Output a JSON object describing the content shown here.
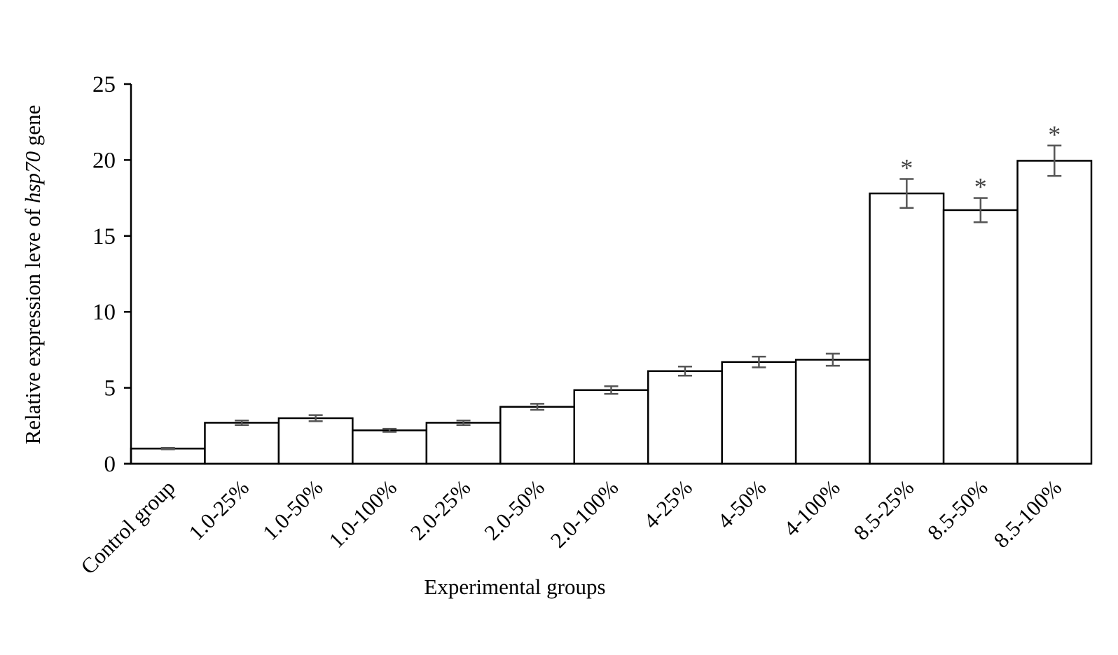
{
  "chart_data": {
    "type": "bar",
    "categories": [
      "Control group",
      "1.0-25%",
      "1.0-50%",
      "1.0-100%",
      "2.0-25%",
      "2.0-50%",
      "2.0-100%",
      "4-25%",
      "4-50%",
      "4-100%",
      "8.5-25%",
      "8.5-50%",
      "8.5-100%"
    ],
    "values": [
      1.0,
      2.7,
      3.0,
      2.2,
      2.7,
      3.75,
      4.85,
      6.1,
      6.7,
      6.85,
      17.8,
      16.7,
      19.95
    ],
    "errors": [
      0.05,
      0.15,
      0.2,
      0.1,
      0.15,
      0.2,
      0.25,
      0.3,
      0.35,
      0.4,
      0.95,
      0.8,
      1.0
    ],
    "significance": [
      "",
      "",
      "",
      "",
      "",
      "",
      "",
      "",
      "",
      "",
      "*",
      "*",
      "*"
    ],
    "xlabel": "Experimental groups",
    "ylabel": {
      "prefix": "Relative expression leve of ",
      "gene": "hsp70",
      "suffix": " gene"
    },
    "ylim": [
      0,
      25
    ],
    "yticks": [
      "0",
      "5",
      "10",
      "15",
      "20",
      "25"
    ],
    "grid": false,
    "legend": "none",
    "colors": {
      "bar_fill": "#ffffff",
      "bar_stroke": "#000000",
      "error_bar": "#555555",
      "axis": "#000000"
    }
  }
}
